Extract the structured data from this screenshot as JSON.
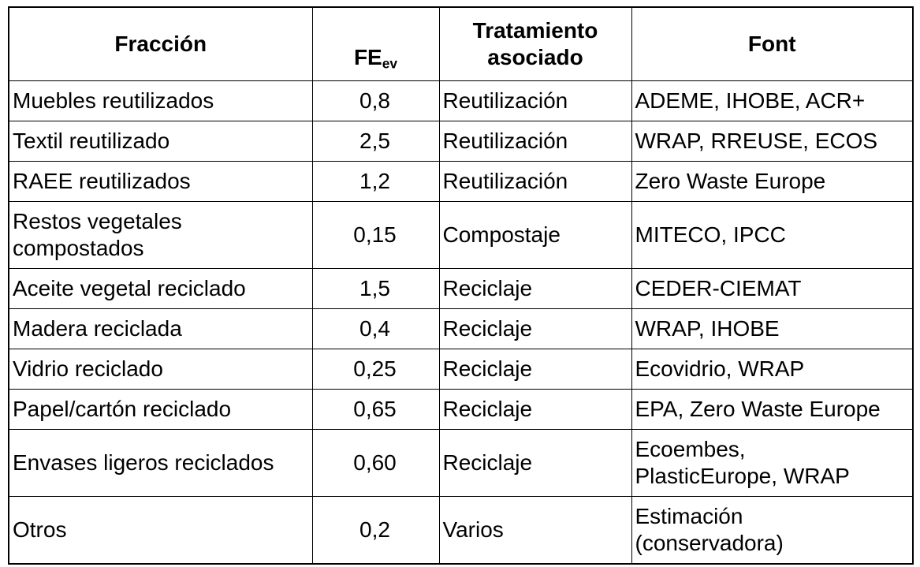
{
  "table": {
    "columns": [
      {
        "label": "Fracción"
      },
      {
        "label": "FE",
        "subscript": "ev"
      },
      {
        "label": "Tratamiento\nasociado"
      },
      {
        "label": "Font"
      }
    ],
    "rows": [
      {
        "fraccion": "Muebles reutilizados",
        "fe": "0,8",
        "tratamiento": "Reutilización",
        "font": "ADEME, IHOBE, ACR+"
      },
      {
        "fraccion": "Textil reutilizado",
        "fe": "2,5",
        "tratamiento": "Reutilización",
        "font": "WRAP, RREUSE, ECOS"
      },
      {
        "fraccion": "RAEE reutilizados",
        "fe": "1,2",
        "tratamiento": "Reutilización",
        "font": "Zero Waste Europe"
      },
      {
        "fraccion": "Restos vegetales\ncompostados",
        "fe": "0,15",
        "tratamiento": "Compostaje",
        "font": "MITECO, IPCC"
      },
      {
        "fraccion": "Aceite vegetal reciclado",
        "fe": "1,5",
        "tratamiento": "Reciclaje",
        "font": "CEDER-CIEMAT"
      },
      {
        "fraccion": "Madera reciclada",
        "fe": "0,4",
        "tratamiento": "Reciclaje",
        "font": "WRAP, IHOBE"
      },
      {
        "fraccion": "Vidrio reciclado",
        "fe": "0,25",
        "tratamiento": "Reciclaje",
        "font": "Ecovidrio, WRAP"
      },
      {
        "fraccion": "Papel/cartón reciclado",
        "fe": "0,65",
        "tratamiento": "Reciclaje",
        "font": "EPA, Zero Waste Europe"
      },
      {
        "fraccion": "Envases ligeros reciclados",
        "fe": "0,60",
        "tratamiento": "Reciclaje",
        "font": "Ecoembes,\nPlasticEurope, WRAP"
      },
      {
        "fraccion": "Otros",
        "fe": "0,2",
        "tratamiento": "Varios",
        "font": "Estimación\n(conservadora)"
      }
    ]
  }
}
